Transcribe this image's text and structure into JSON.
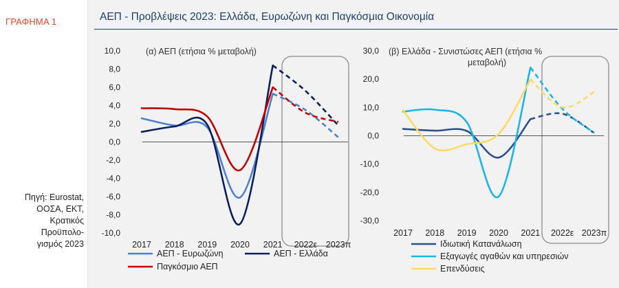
{
  "sidebar": {
    "graph_label": "ΓΡΑΦΗΜΑ 1",
    "source_lines": [
      "Πηγή: Eurostat,",
      "ΟΟΣΑ, ΕΚΤ,",
      "Κρατικός",
      "Προϋπολο-",
      "γισμός 2023"
    ]
  },
  "header": {
    "title": "ΑΕΠ - Προβλέψεις 2023: Ελλάδα, Ευρωζώνη και Παγκόσμια Οικονομία"
  },
  "colors": {
    "navy": "#0b1f5c",
    "light_blue": "#4f7fd1",
    "red": "#c00000",
    "dark_blue": "#2d4f8e",
    "cyan": "#19b5ea",
    "yellow": "#ffd966",
    "box": "#8c8c8c"
  },
  "chart_data": [
    {
      "type": "line",
      "title": "(α) ΑΕΠ (ετήσια % μεταβολή)",
      "categories": [
        "2017",
        "2018",
        "2019",
        "2020",
        "2021",
        "2022ε",
        "2023π"
      ],
      "yticks": [
        "10,0",
        "8,0",
        "6,0",
        "4,0",
        "2,0",
        "0,0",
        "-2,0",
        "-4,0",
        "-6,0",
        "-8,0",
        "-10,0"
      ],
      "ylim": [
        -10,
        10
      ],
      "forecast_from_index": 4,
      "series": [
        {
          "name": "ΑΕΠ - Ευρωζώνη",
          "values": [
            2.6,
            1.8,
            1.6,
            -6.1,
            5.3,
            3.5,
            0.5
          ],
          "color": "#4f7fd1"
        },
        {
          "name": "ΑΕΠ - Ελλάδα",
          "values": [
            1.1,
            1.7,
            1.9,
            -9.0,
            8.4,
            5.6,
            1.8
          ],
          "color": "#0b1f5c"
        },
        {
          "name": "Παγκόσμιο ΑΕΠ",
          "values": [
            3.7,
            3.6,
            2.8,
            -3.1,
            6.0,
            3.2,
            2.2
          ],
          "color": "#c00000"
        }
      ],
      "legend": "bottom"
    },
    {
      "type": "line",
      "title": "(β) Ελλάδα - Συνιστώσες ΑΕΠ (ετήσια % μεταβολή)",
      "title_lines": [
        "(β) Ελλάδα - Συνιστώσες ΑΕΠ (ετήσια %",
        "μεταβολή)"
      ],
      "categories": [
        "2017",
        "2018",
        "2019",
        "2020",
        "2021",
        "2022ε",
        "2023π"
      ],
      "yticks": [
        "30,0",
        "20,0",
        "10,0",
        "0,0",
        "-10,0",
        "-20,0",
        "-30,0"
      ],
      "ylim": [
        -30,
        30
      ],
      "forecast_from_index": 4,
      "series": [
        {
          "name": "Ιδιωτική Κατανάλωση",
          "values": [
            2.4,
            1.8,
            1.7,
            -7.7,
            5.9,
            7.8,
            1.0
          ],
          "color": "#2d4f8e"
        },
        {
          "name": "Εξαγωγές αγαθών και υπηρεσιών",
          "values": [
            8.5,
            9.2,
            4.8,
            -21.5,
            24.1,
            9.5,
            1.0
          ],
          "color": "#19b5ea"
        },
        {
          "name": "Επενδύσεις",
          "values": [
            9.0,
            -4.5,
            -3.0,
            0.6,
            19.9,
            10.0,
            15.5
          ],
          "color": "#ffd966"
        }
      ],
      "legend": "bottom"
    }
  ]
}
